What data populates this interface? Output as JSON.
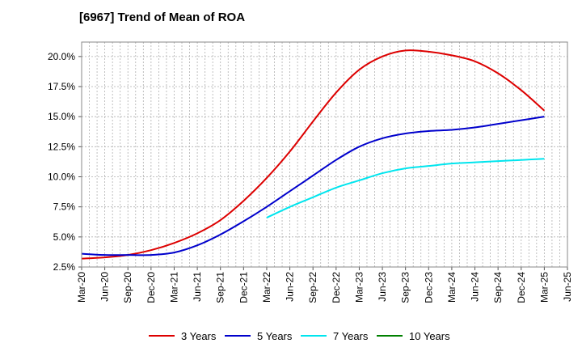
{
  "chart_data": {
    "type": "line",
    "title": "[6967]  Trend of Mean of ROA",
    "xlabel": "",
    "ylabel": "",
    "x_ticks": [
      "Mar-20",
      "Jun-20",
      "Sep-20",
      "Dec-20",
      "Mar-21",
      "Jun-21",
      "Sep-21",
      "Dec-21",
      "Mar-22",
      "Jun-22",
      "Sep-22",
      "Dec-22",
      "Mar-23",
      "Jun-23",
      "Sep-23",
      "Dec-23",
      "Mar-24",
      "Jun-24",
      "Sep-24",
      "Dec-24",
      "Mar-25",
      "Jun-25"
    ],
    "y_ticks": [
      "2.5%",
      "5.0%",
      "7.5%",
      "10.0%",
      "12.5%",
      "15.0%",
      "17.5%",
      "20.0%"
    ],
    "y_tick_values": [
      2.5,
      5.0,
      7.5,
      10.0,
      12.5,
      15.0,
      17.5,
      20.0
    ],
    "ylim": [
      2.5,
      21.2
    ],
    "grid": true,
    "legend_position": "bottom",
    "series": [
      {
        "name": "3 Years",
        "color": "#dd0000",
        "x": [
          "Mar-20",
          "Jun-20",
          "Sep-20",
          "Dec-20",
          "Mar-21",
          "Jun-21",
          "Sep-21",
          "Dec-21",
          "Mar-22",
          "Jun-22",
          "Sep-22",
          "Dec-22",
          "Mar-23",
          "Jun-23",
          "Sep-23",
          "Dec-23",
          "Mar-24",
          "Jun-24",
          "Sep-24",
          "Dec-24",
          "Mar-25"
        ],
        "values": [
          3.2,
          3.3,
          3.5,
          3.9,
          4.5,
          5.3,
          6.4,
          8.0,
          9.9,
          12.1,
          14.6,
          17.0,
          18.9,
          20.0,
          20.5,
          20.4,
          20.1,
          19.6,
          18.6,
          17.2,
          15.5
        ]
      },
      {
        "name": "5 Years",
        "color": "#0000cc",
        "x": [
          "Mar-20",
          "Jun-20",
          "Sep-20",
          "Dec-20",
          "Mar-21",
          "Jun-21",
          "Sep-21",
          "Dec-21",
          "Mar-22",
          "Jun-22",
          "Sep-22",
          "Dec-22",
          "Mar-23",
          "Jun-23",
          "Sep-23",
          "Dec-23",
          "Mar-24",
          "Jun-24",
          "Sep-24",
          "Dec-24",
          "Mar-25"
        ],
        "values": [
          3.6,
          3.5,
          3.5,
          3.5,
          3.7,
          4.3,
          5.2,
          6.3,
          7.5,
          8.8,
          10.1,
          11.4,
          12.5,
          13.2,
          13.6,
          13.8,
          13.9,
          14.1,
          14.4,
          14.7,
          15.0
        ]
      },
      {
        "name": "7 Years",
        "color": "#00e5ee",
        "x": [
          "Mar-22",
          "Jun-22",
          "Sep-22",
          "Dec-22",
          "Mar-23",
          "Jun-23",
          "Sep-23",
          "Dec-23",
          "Mar-24",
          "Jun-24",
          "Sep-24",
          "Dec-24",
          "Mar-25"
        ],
        "values": [
          6.6,
          7.5,
          8.3,
          9.1,
          9.7,
          10.3,
          10.7,
          10.9,
          11.1,
          11.2,
          11.3,
          11.4,
          11.5
        ]
      },
      {
        "name": "10 Years",
        "color": "#008000",
        "x": [],
        "values": []
      }
    ]
  }
}
